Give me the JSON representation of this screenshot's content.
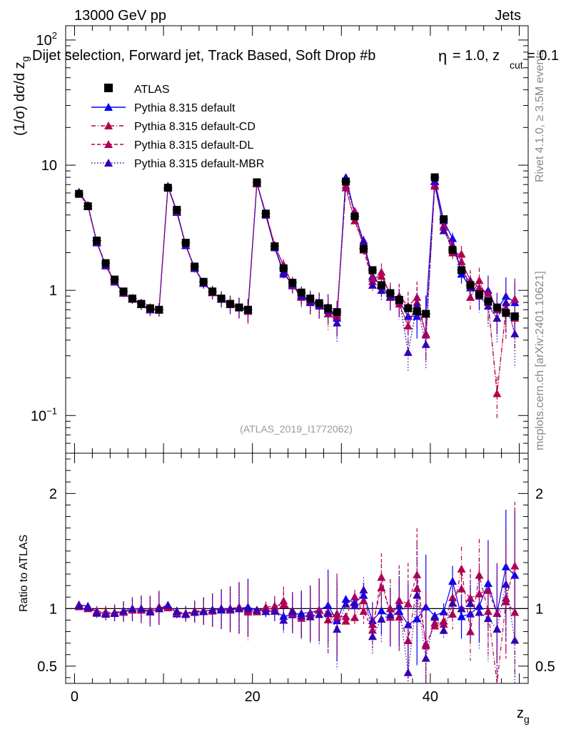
{
  "header": {
    "energy_label": "13000 GeV pp",
    "category_label": "Jets",
    "selection_title": "Dijet selection, Forward jet, Track Based, Soft Drop #b",
    "selection_param": "= 1.0, z",
    "selection_sub": "cut",
    "selection_tail": "= 0.1",
    "beta_symbol": "η"
  },
  "side_labels": {
    "rivet": "Rivet 4.1.0, ≥ 3.5M events",
    "mcplots": "mcplots.cern.ch [arXiv:2401.10621]"
  },
  "watermark": "(ATLAS_2019_I1772062)",
  "colors": {
    "atlas": "#000000",
    "default": "#0000ff",
    "cd": "#b30047",
    "dl": "#b30059",
    "mbr": "#3300b3"
  },
  "chart_data": [
    {
      "type": "line",
      "panel": "main",
      "title": "Dijet selection, Forward jet, Track Based, Soft Drop #b = 1.0, z_cut = 0.1",
      "ylabel": "(1/σ) dσ/d z_g",
      "xlabel": "z_g",
      "yscale": "log",
      "ylim": [
        0.05,
        130
      ],
      "xlim": [
        -1,
        51
      ],
      "y_ticks": [
        {
          "value": 0.1,
          "label": "10",
          "sup": "−1"
        },
        {
          "value": 1,
          "label": "1",
          "sup": ""
        },
        {
          "value": 10,
          "label": "10",
          "sup": ""
        },
        {
          "value": 100,
          "label": "10",
          "sup": "2"
        }
      ],
      "x": [
        0.5,
        1.5,
        2.5,
        3.5,
        4.5,
        5.5,
        6.5,
        7.5,
        8.5,
        9.5,
        10.5,
        11.5,
        12.5,
        13.5,
        14.5,
        15.5,
        16.5,
        17.5,
        18.5,
        19.5,
        20.5,
        21.5,
        22.5,
        23.5,
        24.5,
        25.5,
        26.5,
        27.5,
        28.5,
        29.5,
        30.5,
        31.5,
        32.5,
        33.5,
        34.5,
        35.5,
        36.5,
        37.5,
        38.5,
        39.5,
        40.5,
        41.5,
        42.5,
        43.5,
        44.5,
        45.5,
        46.5,
        47.5,
        48.5,
        49.5
      ],
      "series": [
        {
          "name": "ATLAS",
          "key": "atlas",
          "style": "square",
          "values": [
            5.9,
            4.7,
            2.5,
            1.65,
            1.22,
            0.98,
            0.86,
            0.78,
            0.72,
            0.7,
            6.6,
            4.4,
            2.4,
            1.55,
            1.17,
            0.98,
            0.86,
            0.78,
            0.73,
            0.7,
            7.3,
            4.1,
            2.25,
            1.5,
            1.15,
            0.96,
            0.86,
            0.79,
            0.72,
            0.67,
            7.4,
            3.9,
            2.15,
            1.45,
            1.1,
            0.95,
            0.84,
            0.72,
            0.68,
            0.65,
            8.0,
            3.7,
            2.1,
            1.45,
            1.1,
            0.93,
            0.82,
            0.73,
            0.66,
            0.62
          ]
        },
        {
          "name": "Pythia 8.315 default",
          "key": "default",
          "style": "solid",
          "values": [
            6.1,
            4.8,
            2.42,
            1.58,
            1.17,
            0.95,
            0.85,
            0.77,
            0.7,
            0.7,
            6.8,
            4.2,
            2.3,
            1.5,
            1.14,
            0.97,
            0.85,
            0.77,
            0.73,
            0.71,
            7.2,
            4.0,
            2.2,
            1.4,
            1.09,
            0.92,
            0.83,
            0.78,
            0.74,
            0.6,
            8.0,
            4.1,
            2.4,
            1.3,
            1.08,
            0.88,
            0.82,
            0.62,
            0.62,
            0.66,
            7.5,
            3.6,
            2.6,
            1.35,
            1.05,
            0.95,
            1.0,
            0.7,
            0.9,
            0.8
          ]
        },
        {
          "name": "Pythia 8.315 default-CD",
          "key": "cd",
          "style": "dashdot",
          "values": [
            6.1,
            4.75,
            2.45,
            1.6,
            1.18,
            0.96,
            0.86,
            0.78,
            0.7,
            0.7,
            6.7,
            4.3,
            2.3,
            1.52,
            1.15,
            0.96,
            0.86,
            0.78,
            0.74,
            0.68,
            7.1,
            4.15,
            2.3,
            1.55,
            1.13,
            0.9,
            0.8,
            0.78,
            0.65,
            0.64,
            6.6,
            3.6,
            2.3,
            1.25,
            1.3,
            0.95,
            0.78,
            0.52,
            0.8,
            0.45,
            6.8,
            3.3,
            2.0,
            1.95,
            0.88,
            1.2,
            0.8,
            0.15,
            0.7,
            0.6
          ]
        },
        {
          "name": "Pythia 8.315 default-DL",
          "key": "dl",
          "style": "dashed",
          "values": [
            6.0,
            4.7,
            2.43,
            1.58,
            1.17,
            0.95,
            0.85,
            0.77,
            0.71,
            0.71,
            6.65,
            4.25,
            2.28,
            1.5,
            1.15,
            0.96,
            0.86,
            0.77,
            0.73,
            0.69,
            7.2,
            4.1,
            2.25,
            1.6,
            1.1,
            0.88,
            0.82,
            0.78,
            0.7,
            0.62,
            6.9,
            4.3,
            2.1,
            1.18,
            1.4,
            0.88,
            0.9,
            0.75,
            0.88,
            0.44,
            7.0,
            3.2,
            2.3,
            1.7,
            1.2,
            1.05,
            0.95,
            0.7,
            0.72,
            0.85
          ]
        },
        {
          "name": "Pythia 8.315 default-MBR",
          "key": "mbr",
          "style": "dotted",
          "values": [
            6.05,
            4.75,
            2.4,
            1.57,
            1.17,
            0.96,
            0.86,
            0.78,
            0.7,
            0.7,
            6.8,
            4.3,
            2.28,
            1.5,
            1.14,
            0.97,
            0.86,
            0.78,
            0.73,
            0.7,
            7.2,
            4.0,
            2.2,
            1.35,
            1.12,
            0.9,
            0.8,
            0.75,
            0.69,
            0.55,
            7.7,
            4.0,
            2.5,
            1.1,
            1.0,
            0.9,
            0.86,
            0.32,
            0.76,
            0.37,
            7.4,
            3.0,
            2.2,
            1.45,
            1.15,
            0.9,
            0.75,
            0.6,
            0.8,
            0.45
          ]
        }
      ]
    },
    {
      "type": "line",
      "panel": "ratio",
      "ylabel": "Ratio to ATLAS",
      "xlabel": "z_g",
      "ylim": [
        0.35,
        2.35
      ],
      "xlim": [
        -1,
        51
      ],
      "y_ticks": [
        {
          "value": 0.5,
          "label": "0.5"
        },
        {
          "value": 1,
          "label": "1"
        },
        {
          "value": 2,
          "label": "2"
        }
      ],
      "x_ticks": [
        {
          "value": 0,
          "label": "0"
        },
        {
          "value": 20,
          "label": "20"
        },
        {
          "value": 40,
          "label": "40"
        }
      ],
      "reference_line": 1
    }
  ]
}
